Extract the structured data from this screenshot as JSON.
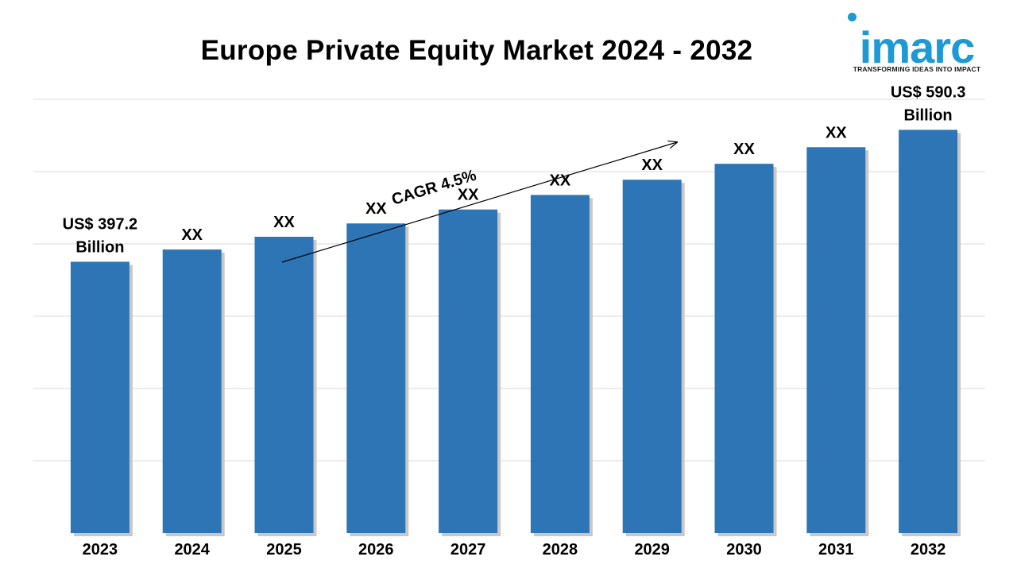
{
  "logo": {
    "word": "imarc",
    "tagline": "TRANSFORMING IDEAS INTO IMPACT",
    "color": "#1d9ad6"
  },
  "chart_data": {
    "type": "bar",
    "title": "Europe Private Equity Market 2024 - 2032",
    "xlabel": "",
    "ylabel": "",
    "categories": [
      "2023",
      "2024",
      "2025",
      "2026",
      "2027",
      "2028",
      "2029",
      "2030",
      "2031",
      "2032"
    ],
    "values": [
      397.2,
      415.1,
      433.8,
      453.3,
      473.7,
      495.0,
      517.3,
      540.6,
      564.9,
      590.3
    ],
    "data_labels": [
      [
        "US$ 397.2",
        "Billion"
      ],
      [
        "XX"
      ],
      [
        "XX"
      ],
      [
        "XX"
      ],
      [
        "XX"
      ],
      [
        "XX"
      ],
      [
        "XX"
      ],
      [
        "XX"
      ],
      [
        "XX"
      ],
      [
        "US$ 590.3",
        "Billion"
      ]
    ],
    "annotation": "CAGR 4.5%",
    "ylim": [
      0,
      635
    ],
    "grid": true,
    "bar_color": "#2e75b6"
  }
}
